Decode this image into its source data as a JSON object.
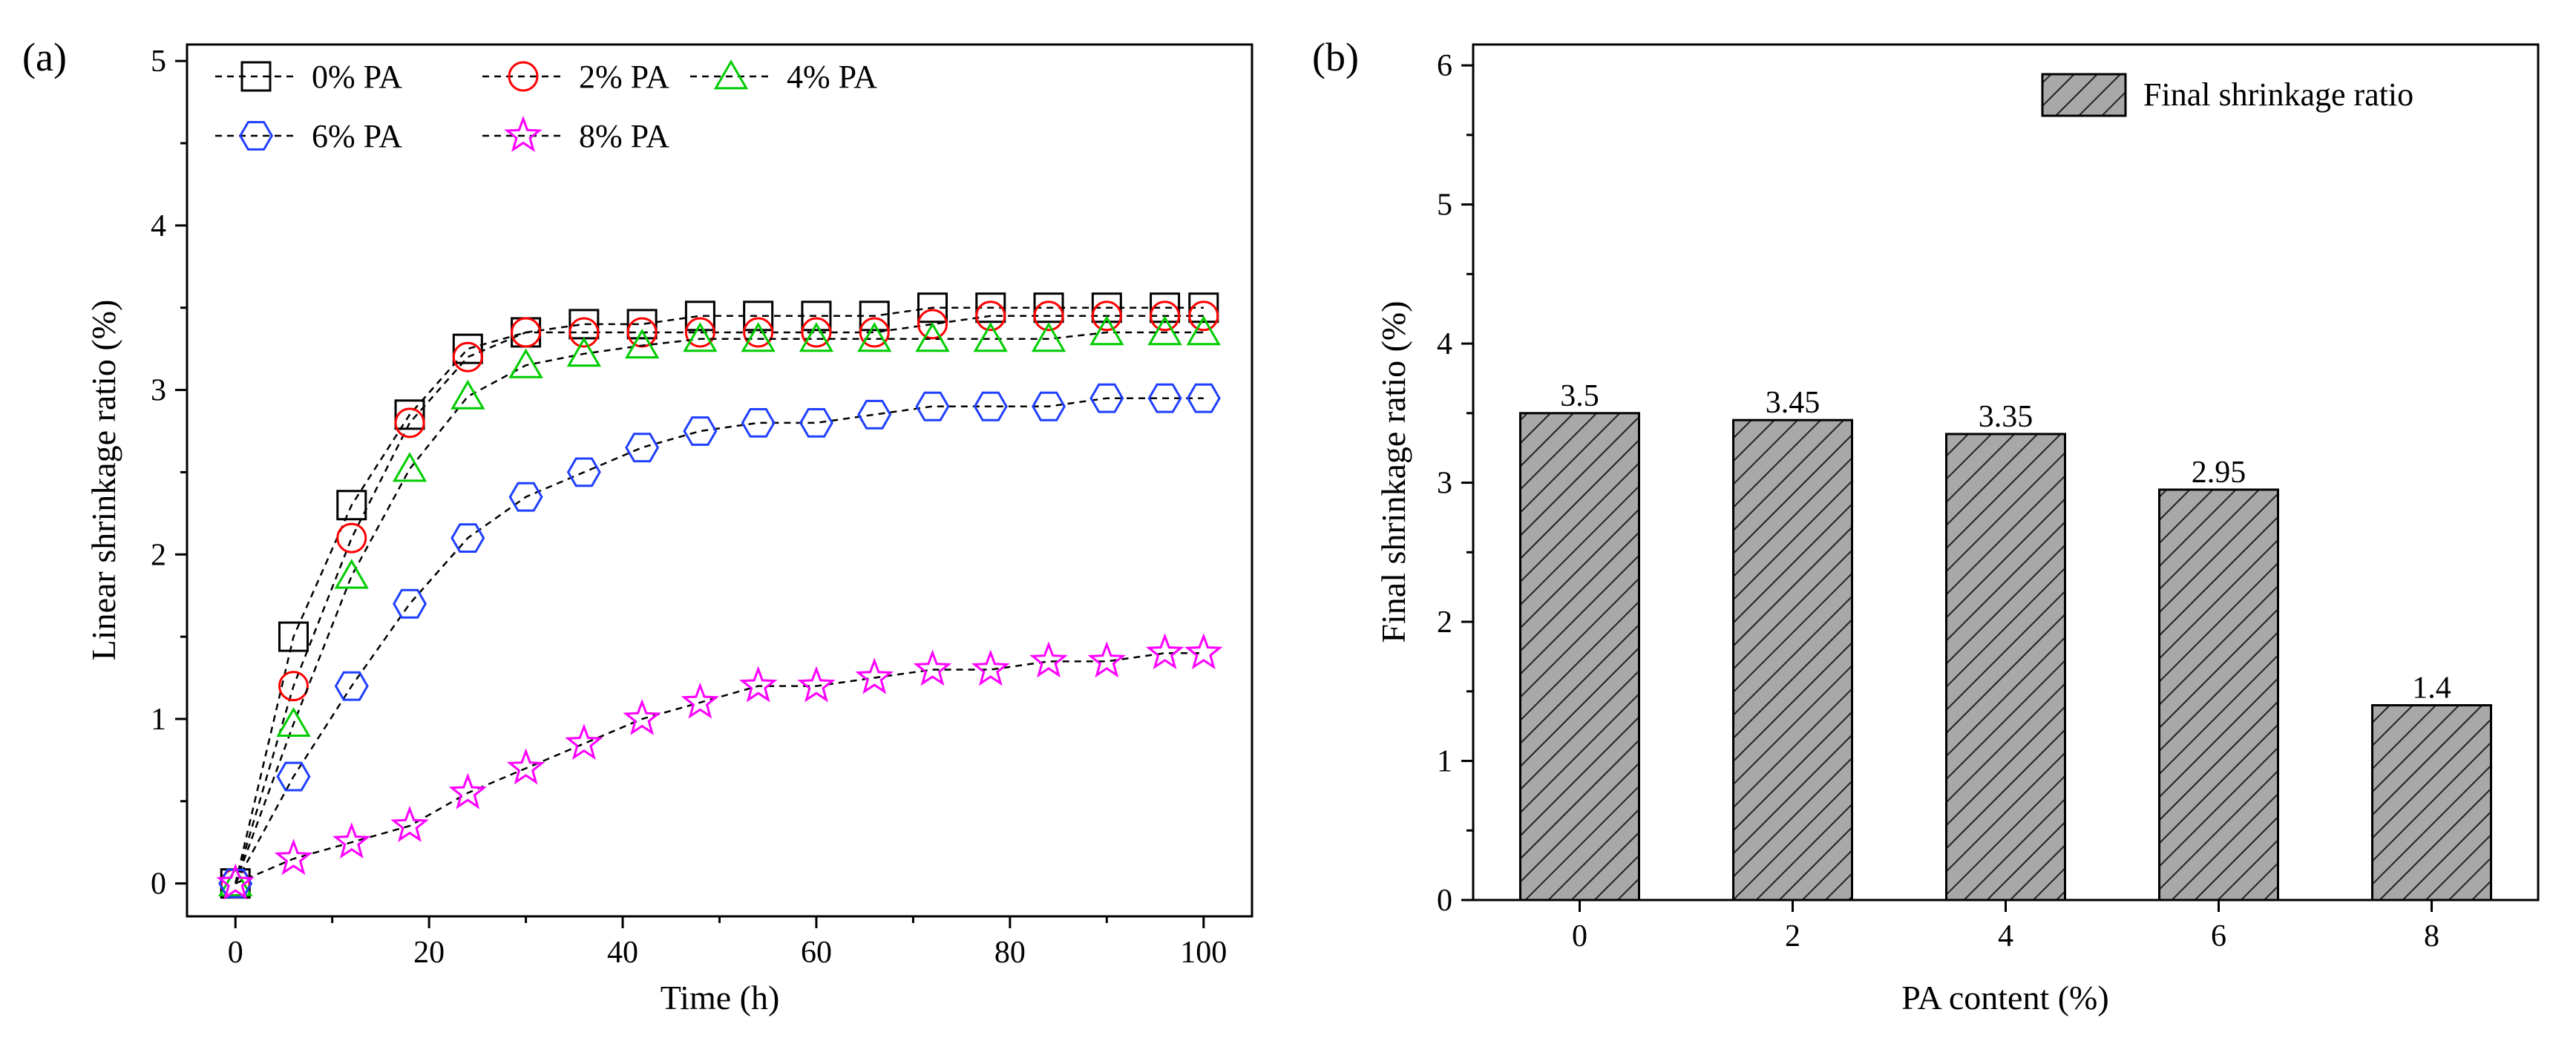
{
  "chart_data": [
    {
      "type": "line",
      "panel_label": "(a)",
      "title": "",
      "xlabel": "Time (h)",
      "ylabel": "Linear shrinkage ratio (%)",
      "xlim": [
        -5,
        105
      ],
      "ylim": [
        -0.2,
        5.1
      ],
      "xticks": [
        "0",
        "20",
        "40",
        "60",
        "80",
        "100"
      ],
      "yticks": [
        "0",
        "1",
        "2",
        "3",
        "4",
        "5"
      ],
      "legend_location": "top-left",
      "x": [
        0,
        6,
        12,
        18,
        24,
        30,
        36,
        42,
        48,
        54,
        60,
        66,
        72,
        78,
        84,
        90,
        96,
        100
      ],
      "series": [
        {
          "name": "0% PA",
          "marker": "square",
          "color": "#000000",
          "values": [
            0,
            1.5,
            2.3,
            2.85,
            3.25,
            3.35,
            3.4,
            3.4,
            3.45,
            3.45,
            3.45,
            3.45,
            3.5,
            3.5,
            3.5,
            3.5,
            3.5,
            3.5
          ]
        },
        {
          "name": "2% PA",
          "marker": "circle",
          "color": "#ff0000",
          "values": [
            0,
            1.2,
            2.1,
            2.8,
            3.2,
            3.35,
            3.35,
            3.35,
            3.35,
            3.35,
            3.35,
            3.35,
            3.4,
            3.45,
            3.45,
            3.45,
            3.45,
            3.45
          ]
        },
        {
          "name": "4% PA",
          "marker": "triangle",
          "color": "#00cc00",
          "values": [
            0,
            0.97,
            1.87,
            2.52,
            2.96,
            3.15,
            3.22,
            3.27,
            3.31,
            3.31,
            3.31,
            3.31,
            3.31,
            3.31,
            3.31,
            3.35,
            3.35,
            3.35
          ]
        },
        {
          "name": "6% PA",
          "marker": "hexagon",
          "color": "#1f3fff",
          "values": [
            0,
            0.65,
            1.2,
            1.7,
            2.1,
            2.35,
            2.5,
            2.65,
            2.75,
            2.8,
            2.8,
            2.85,
            2.9,
            2.9,
            2.9,
            2.95,
            2.95,
            2.95
          ]
        },
        {
          "name": "8% PA",
          "marker": "star",
          "color": "#ff00ff",
          "values": [
            0,
            0.15,
            0.25,
            0.35,
            0.55,
            0.7,
            0.85,
            1.0,
            1.1,
            1.2,
            1.2,
            1.25,
            1.3,
            1.3,
            1.35,
            1.35,
            1.4,
            1.4
          ]
        }
      ]
    },
    {
      "type": "bar",
      "panel_label": "(b)",
      "title": "",
      "xlabel": "PA content (%)",
      "ylabel": "Final shrinkage ratio (%)",
      "ylim": [
        0,
        6.15
      ],
      "yticks": [
        "0",
        "1",
        "2",
        "3",
        "4",
        "5",
        "6"
      ],
      "categories": [
        "0",
        "2",
        "4",
        "6",
        "8"
      ],
      "values": [
        3.5,
        3.45,
        3.35,
        2.95,
        1.4
      ],
      "data_labels": [
        "3.5",
        "3.45",
        "3.35",
        "2.95",
        "1.4"
      ],
      "legend": "Final shrinkage ratio",
      "legend_location": "top-right",
      "bar_fill": "#a8a8a8",
      "bar_hatch": "diagonal"
    }
  ]
}
